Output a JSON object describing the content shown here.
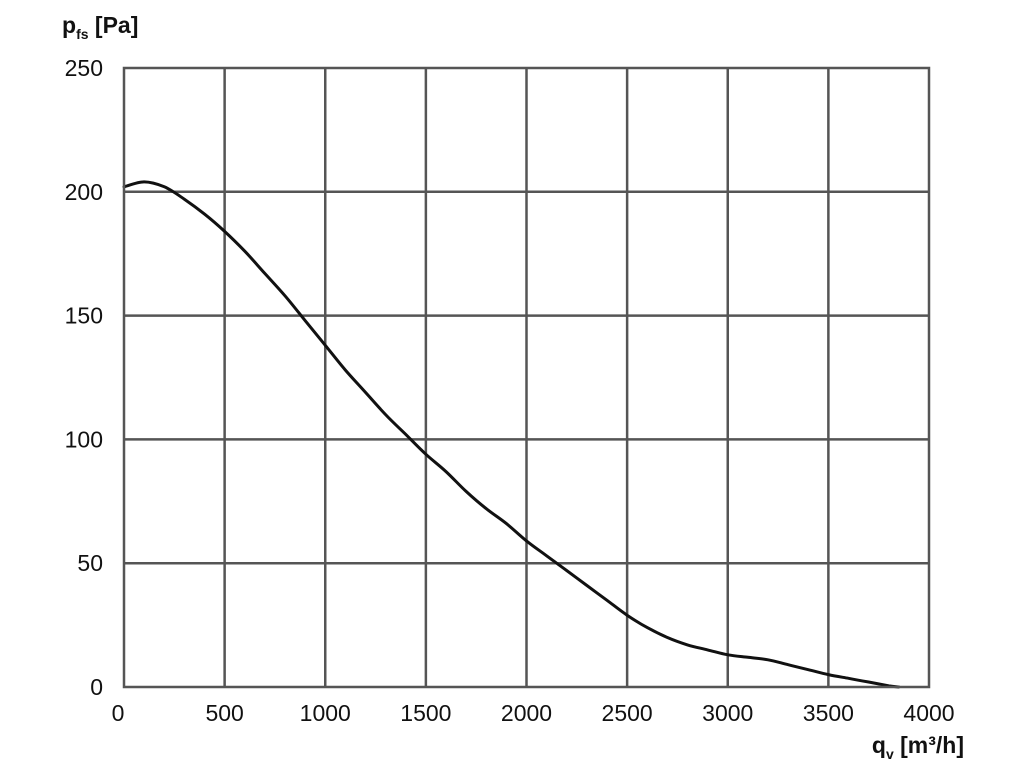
{
  "chart_data": {
    "type": "line",
    "title": "",
    "ylabel": {
      "main": "p",
      "sub": "fs",
      "unit": " [Pa]"
    },
    "xlabel": {
      "main": "q",
      "sub": "v",
      "unit": " [m³/h]"
    },
    "xlim": [
      0,
      4000
    ],
    "ylim": [
      0,
      250
    ],
    "x_ticks": [
      0,
      500,
      1000,
      1500,
      2000,
      2500,
      3000,
      3500,
      4000
    ],
    "y_ticks": [
      0,
      50,
      100,
      150,
      200,
      250
    ],
    "grid": true,
    "line_color": "#111111",
    "grid_color": "#555555",
    "series": [
      {
        "points": [
          [
            0,
            202
          ],
          [
            100,
            204
          ],
          [
            200,
            202
          ],
          [
            300,
            197
          ],
          [
            400,
            191
          ],
          [
            500,
            184
          ],
          [
            600,
            176
          ],
          [
            700,
            167
          ],
          [
            800,
            158
          ],
          [
            900,
            148
          ],
          [
            1000,
            138
          ],
          [
            1100,
            128
          ],
          [
            1200,
            119
          ],
          [
            1300,
            110
          ],
          [
            1400,
            102
          ],
          [
            1500,
            94
          ],
          [
            1600,
            87
          ],
          [
            1700,
            79
          ],
          [
            1800,
            72
          ],
          [
            1900,
            66
          ],
          [
            2000,
            59
          ],
          [
            2100,
            53
          ],
          [
            2200,
            47
          ],
          [
            2300,
            41
          ],
          [
            2400,
            35
          ],
          [
            2500,
            29
          ],
          [
            2600,
            24
          ],
          [
            2700,
            20
          ],
          [
            2800,
            17
          ],
          [
            2900,
            15
          ],
          [
            3000,
            13
          ],
          [
            3100,
            12
          ],
          [
            3200,
            11
          ],
          [
            3300,
            9
          ],
          [
            3400,
            7
          ],
          [
            3500,
            5
          ],
          [
            3600,
            3.5
          ],
          [
            3700,
            2
          ],
          [
            3800,
            0.5
          ],
          [
            3850,
            0
          ]
        ]
      }
    ]
  }
}
